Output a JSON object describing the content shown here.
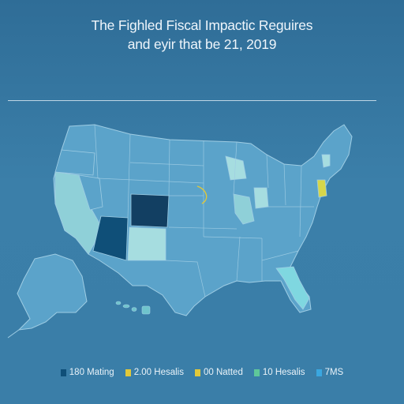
{
  "title": {
    "line1": "The Fighled Fiscal Impactic Reguires",
    "line2": "and eyir that be 21, 2019"
  },
  "colors": {
    "base": "#5fa6cc",
    "dark": "#0f4f78",
    "darker": "#1b5e86",
    "light": "#8fd0d8",
    "pale": "#a6dde0",
    "bright": "#7fd7e0",
    "accent_yellow": "#e0c83a",
    "accent_green": "#5fc79a",
    "border": "#9fcde4"
  },
  "legend": [
    {
      "label": "180 Mating",
      "color": "#0f4f78"
    },
    {
      "label": "2.00 Hesalis",
      "color": "#e0c83a"
    },
    {
      "label": "00 Natted",
      "color": "#e0c83a"
    },
    {
      "label": "10 Hesalis",
      "color": "#5fc79a"
    },
    {
      "label": "7MS",
      "color": "#3aa7e0"
    }
  ]
}
